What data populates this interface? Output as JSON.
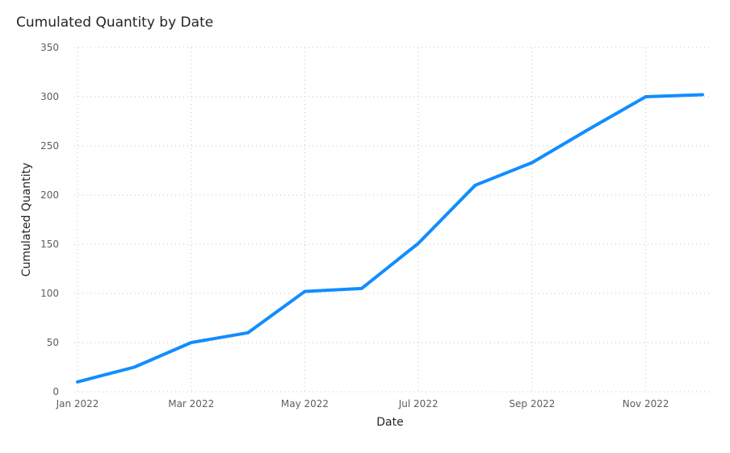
{
  "chart_data": {
    "type": "line",
    "title": "Cumulated Quantity by Date",
    "xlabel": "Date",
    "ylabel": "Cumulated Quantity",
    "x": [
      "2022-01",
      "2022-02",
      "2022-03",
      "2022-04",
      "2022-05",
      "2022-06",
      "2022-07",
      "2022-08",
      "2022-09",
      "2022-10",
      "2022-11",
      "2022-12"
    ],
    "x_ticks": [
      "Jan 2022",
      "Mar 2022",
      "May 2022",
      "Jul 2022",
      "Sep 2022",
      "Nov 2022"
    ],
    "ylim": [
      0,
      350
    ],
    "y_ticks": [
      0,
      50,
      100,
      150,
      200,
      250,
      300,
      350
    ],
    "series": [
      {
        "values": [
          10,
          25,
          50,
          60,
          102,
          105,
          151,
          210,
          233,
          267,
          300,
          302
        ],
        "color": "#118dff"
      }
    ],
    "grid": true,
    "legend": "none"
  }
}
